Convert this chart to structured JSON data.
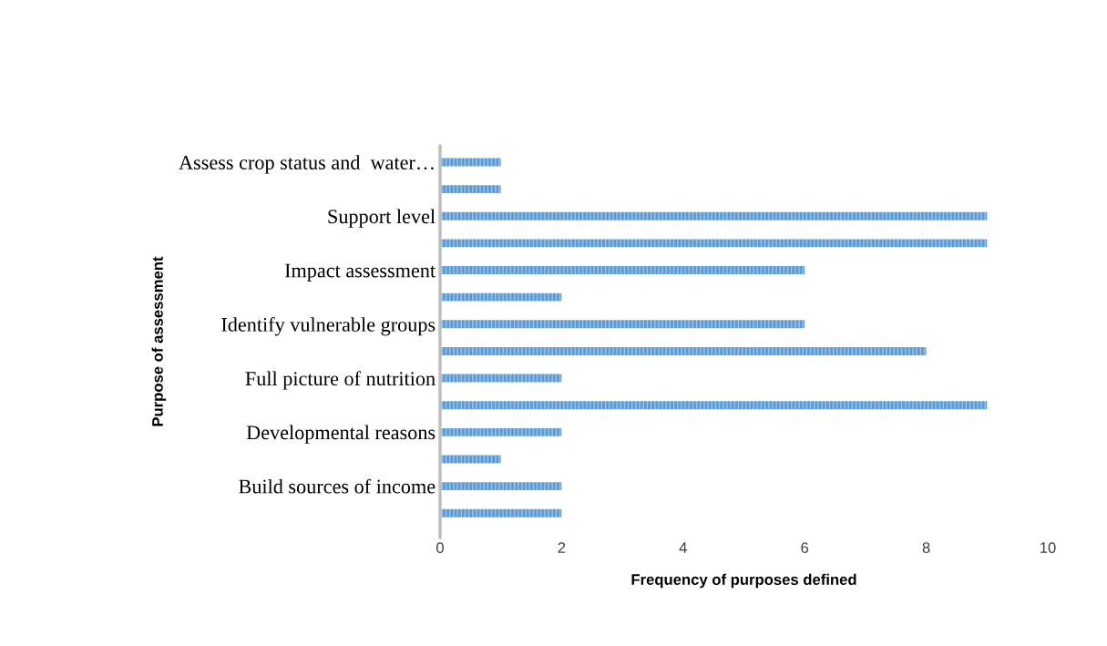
{
  "chart_data": {
    "type": "bar",
    "orientation": "horizontal",
    "xlabel": "Frequency of purposes defined",
    "ylabel": "Purpose of assessment",
    "categories": [
      "Assess crop status and  water…",
      null,
      "Support level",
      null,
      "Impact assessment",
      null,
      "Identify vulnerable groups",
      null,
      "Full picture of nutrition",
      null,
      "Developmental reasons",
      null,
      "Build sources of income",
      null
    ],
    "values": [
      1,
      1,
      9,
      9,
      6,
      2,
      6,
      8,
      2,
      9,
      2,
      1,
      2,
      2
    ],
    "color": "#5b9bd5",
    "xlim": [
      0,
      10
    ],
    "xticks": [
      0,
      2,
      4,
      6,
      8,
      10
    ],
    "grid": false,
    "legend": false
  }
}
